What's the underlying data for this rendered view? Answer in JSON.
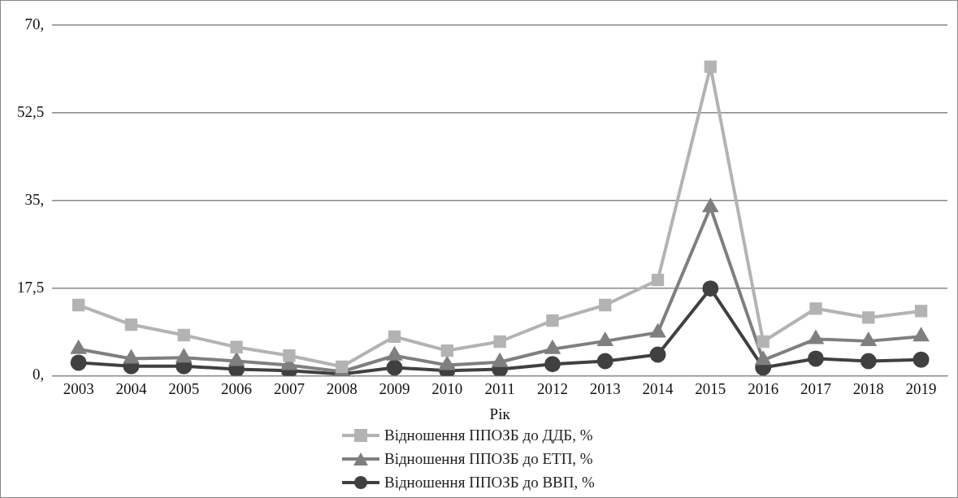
{
  "chart_data": {
    "type": "line",
    "xlabel": "Рік",
    "categories": [
      "2003",
      "2004",
      "2005",
      "2006",
      "2007",
      "2008",
      "2009",
      "2010",
      "2011",
      "2012",
      "2013",
      "2014",
      "2015",
      "2016",
      "2017",
      "2018",
      "2019"
    ],
    "series": [
      {
        "name": "Відношення ППОЗБ до ДДБ, %",
        "color": "#b3b3b3",
        "marker": "square",
        "values": [
          14.1,
          10.2,
          8.1,
          5.7,
          4.0,
          1.8,
          7.8,
          5.0,
          6.8,
          11.0,
          14.1,
          19.1,
          61.7,
          6.8,
          13.4,
          11.6,
          12.9
        ]
      },
      {
        "name": "Відношення ППОЗБ до ЕТП, %",
        "color": "#7f7f7f",
        "marker": "triangle",
        "values": [
          5.3,
          3.4,
          3.6,
          2.9,
          2.1,
          0.8,
          4.0,
          2.1,
          2.7,
          5.3,
          6.9,
          8.6,
          33.6,
          3.1,
          7.3,
          6.9,
          7.8
        ]
      },
      {
        "name": "Відношення ППОЗБ до ВВП, %",
        "color": "#404040",
        "marker": "circle",
        "values": [
          2.6,
          1.9,
          1.9,
          1.3,
          1.0,
          0.3,
          1.6,
          1.0,
          1.3,
          2.3,
          2.9,
          4.2,
          17.4,
          1.6,
          3.4,
          2.9,
          3.2
        ]
      }
    ],
    "ylim": [
      0,
      70
    ],
    "yticks": [
      {
        "value": 0,
        "label": "0,"
      },
      {
        "value": 17.5,
        "label": "17,5"
      },
      {
        "value": 35,
        "label": "35,"
      },
      {
        "value": 52.5,
        "label": "52,5"
      },
      {
        "value": 70,
        "label": "70,"
      }
    ],
    "grid": "y",
    "legend": "bottom",
    "line_style": "solid"
  }
}
